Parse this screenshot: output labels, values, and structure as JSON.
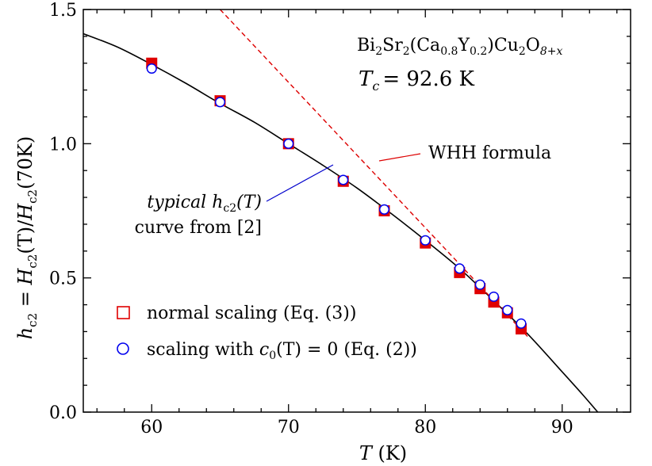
{
  "chart_data": {
    "type": "scatter",
    "xlabel": "T (K)",
    "ylabel": "h_c2 = H_c2(T)/H_c2(70K)",
    "xlim": [
      55,
      95
    ],
    "ylim": [
      0,
      1.5
    ],
    "xticks": [
      60,
      70,
      80,
      90
    ],
    "yticks": [
      0.0,
      0.5,
      1.0,
      1.5
    ],
    "grid": false,
    "legend_position": "bottom-left",
    "series": [
      {
        "name": "normal scaling (Eq. (3))",
        "marker": "square",
        "color": "#e00000",
        "x": [
          60,
          65,
          70,
          74,
          77,
          80,
          82.5,
          84,
          85,
          86,
          87
        ],
        "y": [
          1.3,
          1.16,
          1.0,
          0.86,
          0.75,
          0.63,
          0.52,
          0.46,
          0.41,
          0.37,
          0.31
        ]
      },
      {
        "name": "scaling with c0(T) = 0 (Eq. (2))",
        "marker": "circle",
        "color": "#0000ee",
        "x": [
          60,
          65,
          70,
          74,
          77,
          80,
          82.5,
          84,
          85,
          86,
          87
        ],
        "y": [
          1.28,
          1.155,
          1.0,
          0.865,
          0.755,
          0.64,
          0.535,
          0.475,
          0.43,
          0.38,
          0.33
        ]
      }
    ],
    "curves": [
      {
        "name": "typical h_c2(T) curve from [2]",
        "style": "solid",
        "color": "#000000",
        "x": [
          55,
          57.5,
          60,
          62.5,
          65,
          67.5,
          70,
          72.5,
          75,
          77.5,
          80,
          82.5,
          85,
          87.5,
          90,
          91.5,
          92.6
        ],
        "y": [
          1.41,
          1.36,
          1.295,
          1.225,
          1.15,
          1.08,
          1.0,
          0.92,
          0.835,
          0.74,
          0.64,
          0.535,
          0.415,
          0.29,
          0.15,
          0.065,
          0.0
        ]
      },
      {
        "name": "WHH formula",
        "style": "dashed",
        "color": "#dd0000",
        "x": [
          65.0,
          87.5
        ],
        "y": [
          1.5,
          0.28
        ]
      }
    ],
    "annotations": {
      "compound_parts": [
        "Bi",
        "2",
        "Sr",
        "2",
        "(Ca",
        "0.8",
        "Y",
        "0.2",
        ")Cu",
        "2",
        "O",
        "8+x"
      ],
      "tc_label": "T",
      "tc_sub": "c",
      "tc_value": "= 92.6 K",
      "whh_label": "WHH formula",
      "typical_line1_italic": "typical",
      "typical_h": "h",
      "typical_sub": "c2",
      "typical_arg": "(T)",
      "typical_line2": "curve from [2]"
    },
    "legend": {
      "square_label": "normal scaling (Eq. (3))",
      "circle_prefix": "scaling with ",
      "circle_c": "c",
      "circle_sub": "0",
      "circle_rest": "(T) = 0 (Eq. (2))"
    },
    "axis_text": {
      "x_T": "T",
      "x_unit": " (K)",
      "y_parts": [
        "h",
        "c2",
        " = ",
        "H",
        "c2",
        "(T)/",
        "H",
        "c2",
        "(70K)"
      ]
    }
  }
}
